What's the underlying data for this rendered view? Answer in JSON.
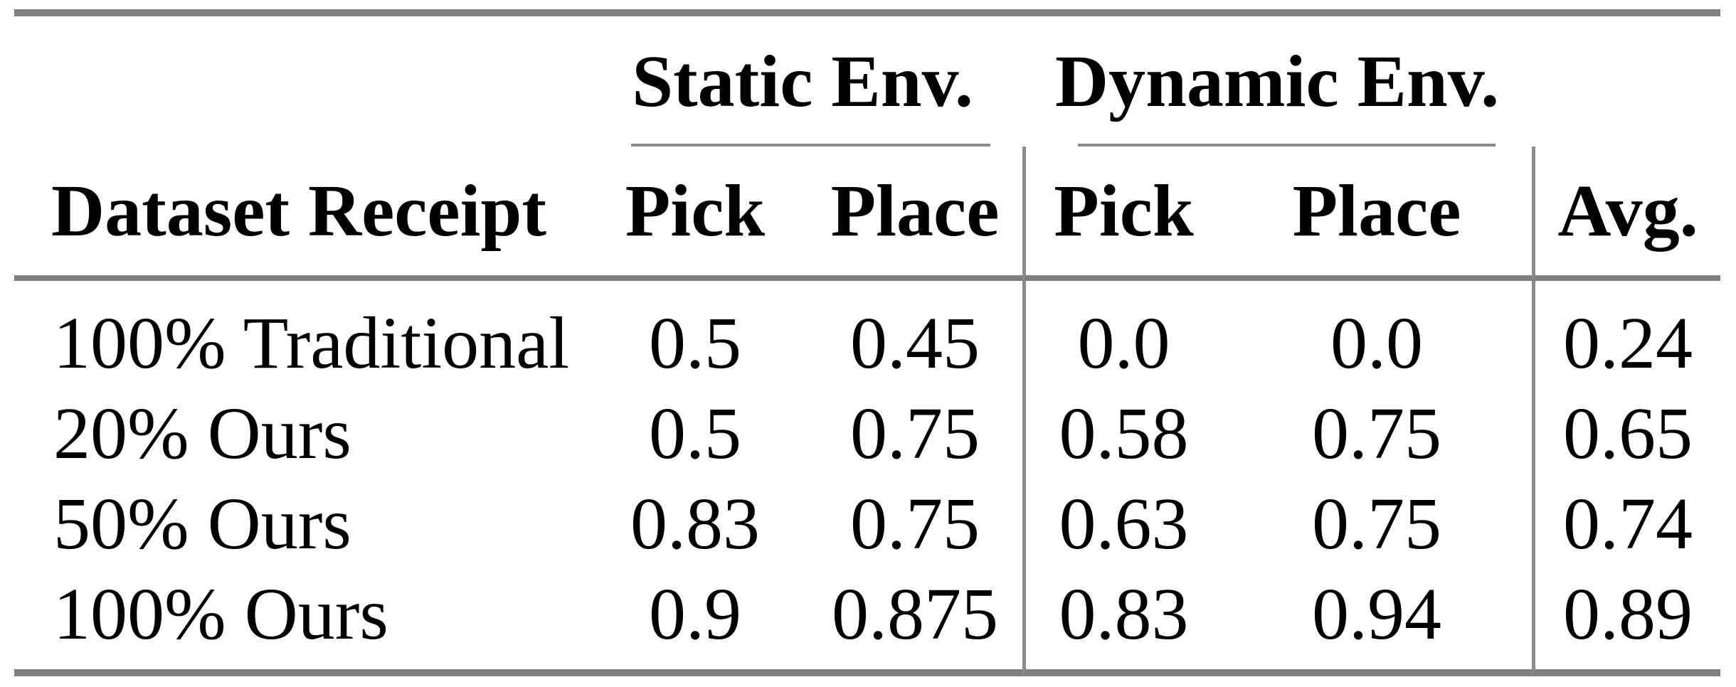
{
  "table": {
    "row_header": "Dataset Receipt",
    "avg_label": "Avg.",
    "groups": [
      {
        "label": "Static Env.",
        "columns": [
          "Pick",
          "Place"
        ]
      },
      {
        "label": "Dynamic Env.",
        "columns": [
          "Pick",
          "Place"
        ]
      }
    ],
    "rows": [
      {
        "label": "100% Traditional",
        "values": [
          "0.5",
          "0.45",
          "0.0",
          "0.0",
          "0.24"
        ]
      },
      {
        "label": "20% Ours",
        "values": [
          "0.5",
          "0.75",
          "0.58",
          "0.75",
          "0.65"
        ]
      },
      {
        "label": "50% Ours",
        "values": [
          "0.83",
          "0.75",
          "0.63",
          "0.75",
          "0.74"
        ]
      },
      {
        "label": "100% Ours",
        "values": [
          "0.9",
          "0.875",
          "0.83",
          "0.94",
          "0.89"
        ]
      }
    ],
    "colors": {
      "heavy_rule": "#7f7f7f",
      "light_rule": "#8a8a8a",
      "vertical_rule": "#8c8c8c",
      "text": "#000000",
      "background": "#ffffff"
    }
  }
}
